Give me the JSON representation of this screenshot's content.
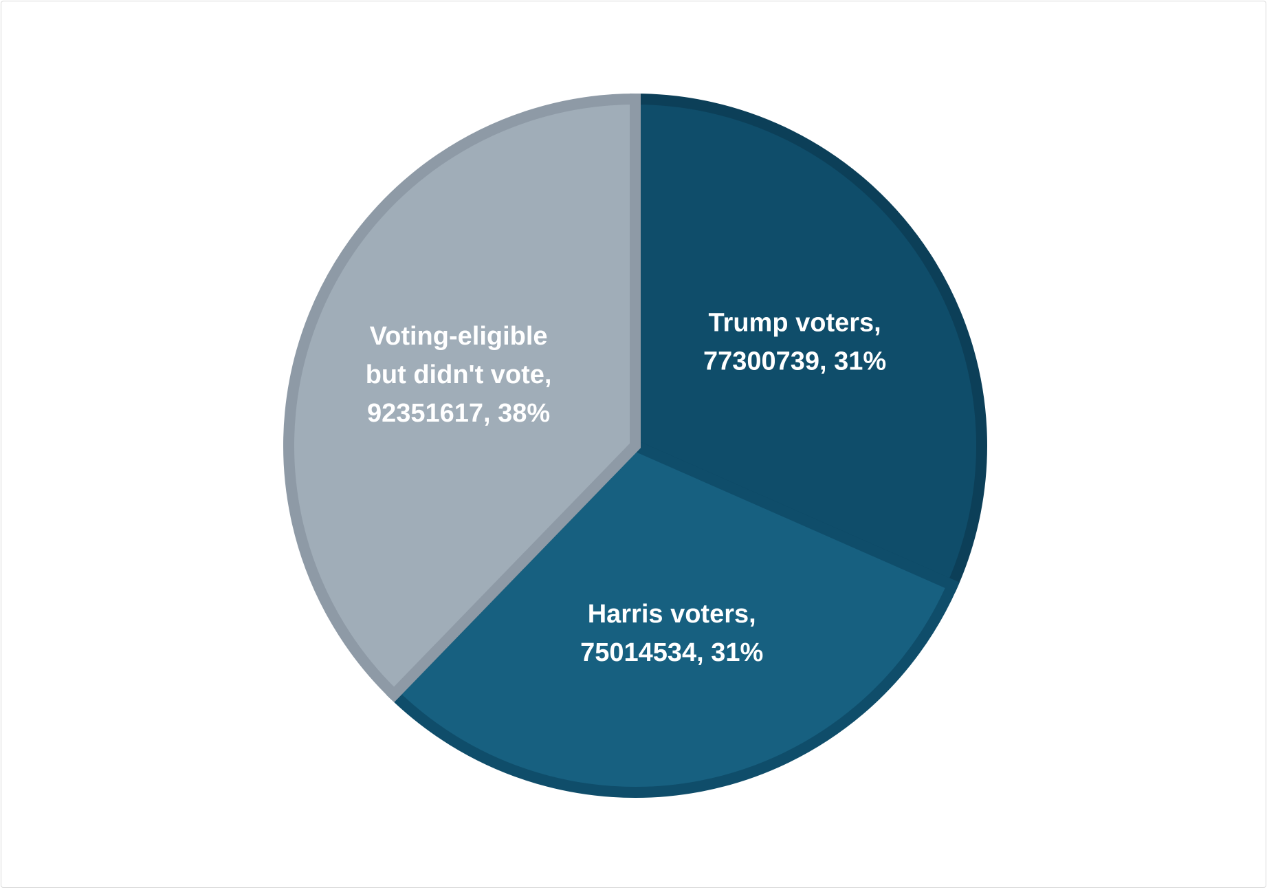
{
  "chart_data": {
    "type": "pie",
    "slices": [
      {
        "name": "Trump voters",
        "value": 77300739,
        "percent_label": "31%",
        "label_lines": [
          "Trump voters,",
          "77300739, 31%"
        ],
        "fill": "#0f4d6a",
        "stroke": "#0c3f58"
      },
      {
        "name": "Harris voters",
        "value": 75014534,
        "percent_label": "31%",
        "label_lines": [
          "Harris voters,",
          "75014534, 31%"
        ],
        "fill": "#176080",
        "stroke": "#0f4d6a"
      },
      {
        "name": "Voting-eligible but didn't vote",
        "value": 92351617,
        "percent_label": "38%",
        "label_lines": [
          "Voting-eligible",
          "but didn't vote,",
          "92351617, 38%"
        ],
        "fill": "#a0adb8",
        "stroke": "#8e9aa6"
      }
    ],
    "start_angle": "12 o'clock",
    "direction": "clockwise",
    "legend": "none",
    "data_labels": "inside"
  }
}
